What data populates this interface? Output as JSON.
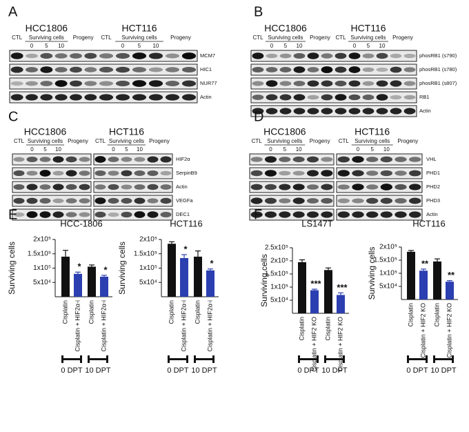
{
  "blots": [
    {
      "letter": "A",
      "cell_lines": [
        "HCC1806",
        "HCT116"
      ],
      "lanes": {
        "ctl": "CTL",
        "surviving": "Surviving cells",
        "times": [
          "0",
          "5",
          "10"
        ],
        "progeny": "Progeny"
      },
      "proteins": [
        "MCM7",
        "HIC1",
        "NUR77",
        "Actin"
      ]
    },
    {
      "letter": "B",
      "cell_lines": [
        "HCC1806",
        "HCT116"
      ],
      "lanes": {
        "ctl": "CTL",
        "surviving": "Surviving cells",
        "times": [
          "0",
          "5",
          "10"
        ],
        "progeny": "Progeny"
      },
      "proteins": [
        "phosRB1 (s790)",
        "phosRB1 (s780)",
        "phosRB1 (s807)",
        "RB1",
        "Actin"
      ]
    },
    {
      "letter": "C",
      "cell_lines": [
        "HCC1806",
        "HCT116"
      ],
      "lanes": {
        "ctl": "CTL",
        "surviving": "Surviving cells",
        "times": [
          "0",
          "5",
          "10"
        ],
        "progeny": "Progeny"
      },
      "proteins": [
        "HIF2α",
        "SerpinB9",
        "Actin",
        "VEGFa",
        "DEC1"
      ]
    },
    {
      "letter": "D",
      "cell_lines": [
        "HCC1806",
        "HCT116"
      ],
      "lanes": {
        "ctl": "CTL",
        "surviving": "Surviving cells",
        "times": [
          "0",
          "5",
          "10"
        ],
        "progeny": "Progeny"
      },
      "proteins": [
        "VHL",
        "PHD1",
        "PHD2",
        "PHD3",
        "Actin"
      ]
    }
  ],
  "bar_panel_labels": [
    "E",
    "F"
  ],
  "chart_data": [
    {
      "type": "bar",
      "title": "HCC-1806",
      "ylabel": "Surviving cells",
      "categories": [
        "Cisplatin",
        "Cisplatin + HIF2α-i",
        "Cisplatin",
        "Cisplatin + HIF2α-i"
      ],
      "values": [
        140000,
        80000,
        105000,
        70000
      ],
      "errors": [
        22000,
        6000,
        6000,
        5000
      ],
      "colors": [
        "#111111",
        "#2b3fb0",
        "#111111",
        "#2b3fb0"
      ],
      "annotations": [
        null,
        "*",
        null,
        "*"
      ],
      "groups": [
        "0 DPT",
        "10 DPT"
      ],
      "ylim": [
        0,
        200000
      ],
      "yticks": [
        {
          "value": 50000,
          "label": "5x10⁴"
        },
        {
          "value": 100000,
          "label": "1x10⁵"
        },
        {
          "value": 150000,
          "label": "1.5x10⁵"
        },
        {
          "value": 200000,
          "label": "2x10⁵"
        }
      ]
    },
    {
      "type": "bar",
      "title": "HCT116",
      "ylabel": "Surviving cells",
      "categories": [
        "Cisplatin",
        "Cisplatin + HIF2α-i",
        "Cisplatin",
        "Cisplatin + HIF2α-i"
      ],
      "values": [
        185000,
        135000,
        140000,
        92000
      ],
      "errors": [
        7000,
        12000,
        20000,
        5000
      ],
      "colors": [
        "#111111",
        "#2b3fb0",
        "#111111",
        "#2b3fb0"
      ],
      "annotations": [
        null,
        "*",
        null,
        "*"
      ],
      "groups": [
        "0 DPT",
        "10 DPT"
      ],
      "ylim": [
        0,
        200000
      ],
      "yticks": [
        {
          "value": 50000,
          "label": "5x10⁴"
        },
        {
          "value": 100000,
          "label": "1x10⁵"
        },
        {
          "value": 150000,
          "label": "1.5x10⁵"
        },
        {
          "value": 200000,
          "label": "2x10⁵"
        }
      ]
    },
    {
      "type": "bar",
      "title": "LS147T",
      "ylabel": "Surviving cells",
      "categories": [
        "Cisplatin",
        "Cisplatin + HIF2 KO",
        "Cisplatin",
        "Cisplatin + HIF2 KO"
      ],
      "values": [
        195000,
        88000,
        165000,
        70000
      ],
      "errors": [
        9000,
        4000,
        8000,
        8000
      ],
      "colors": [
        "#111111",
        "#2b3fb0",
        "#111111",
        "#2b3fb0"
      ],
      "annotations": [
        null,
        "***",
        null,
        "***"
      ],
      "groups": [
        "0 DPT",
        "10 DPT"
      ],
      "ylim": [
        0,
        250000
      ],
      "yticks": [
        {
          "value": 50000,
          "label": "5x10⁴"
        },
        {
          "value": 100000,
          "label": "1x10⁵"
        },
        {
          "value": 150000,
          "label": "1.5x10⁵"
        },
        {
          "value": 200000,
          "label": "2x10⁵"
        },
        {
          "value": 250000,
          "label": "2.5x10⁵"
        }
      ]
    },
    {
      "type": "bar",
      "title": "HCT116",
      "ylabel": "Surviving cells",
      "categories": [
        "Cisplatin",
        "Cisplatin + HIF2 KO",
        "Cisplatin",
        "Cisplatin + HIF2 KO"
      ],
      "values": [
        182000,
        110000,
        145000,
        68000
      ],
      "errors": [
        5000,
        6000,
        10000,
        4000
      ],
      "colors": [
        "#111111",
        "#2b3fb0",
        "#111111",
        "#2b3fb0"
      ],
      "annotations": [
        null,
        "**",
        null,
        "**"
      ],
      "groups": [
        "0 DPT",
        "10 DPT"
      ],
      "ylim": [
        0,
        200000
      ],
      "yticks": [
        {
          "value": 50000,
          "label": "5x10⁴"
        },
        {
          "value": 100000,
          "label": "1x10⁵"
        },
        {
          "value": 150000,
          "label": "1.5x10⁵"
        },
        {
          "value": 200000,
          "label": "2x10⁵"
        }
      ]
    }
  ]
}
